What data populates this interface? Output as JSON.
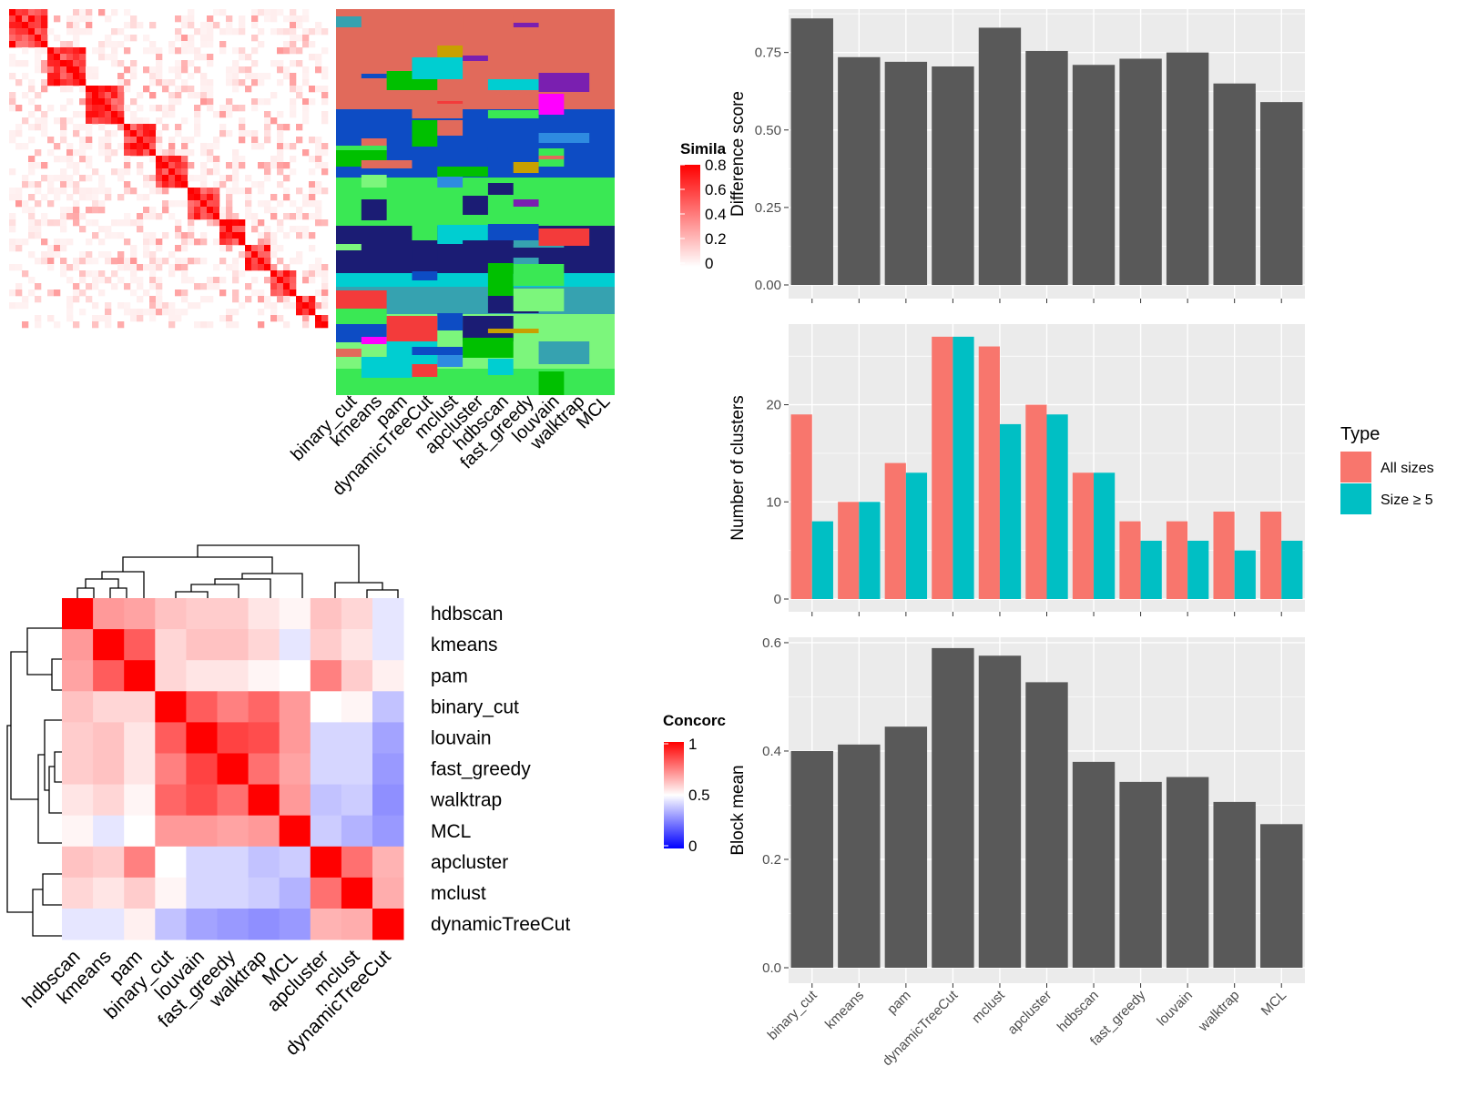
{
  "methods": [
    "binary_cut",
    "kmeans",
    "pam",
    "dynamicTreeCut",
    "mclust",
    "apcluster",
    "hdbscan",
    "fast_greedy",
    "louvain",
    "walktrap",
    "MCL"
  ],
  "top_left": {
    "legend_title": "Simila",
    "legend_ticks": [
      "0.8",
      "0.6",
      "0.4",
      "0.2",
      "0"
    ],
    "membership_labels": [
      "binary_cut",
      "kmeans",
      "pam",
      "dynamicTreeCut",
      "mclust",
      "apcluster",
      "hdbscan",
      "fast_greedy",
      "louvain",
      "walktrap",
      "MCL"
    ]
  },
  "concordance": {
    "legend_title": "Concorc",
    "legend_ticks": [
      "1",
      "0.5",
      "0"
    ],
    "order": [
      "hdbscan",
      "kmeans",
      "pam",
      "binary_cut",
      "louvain",
      "fast_greedy",
      "walktrap",
      "MCL",
      "apcluster",
      "mclust",
      "dynamicTreeCut"
    ],
    "matrix": [
      [
        1.0,
        0.7,
        0.68,
        0.62,
        0.6,
        0.6,
        0.55,
        0.52,
        0.62,
        0.58,
        0.45
      ],
      [
        0.7,
        1.0,
        0.82,
        0.58,
        0.62,
        0.62,
        0.58,
        0.45,
        0.6,
        0.55,
        0.45
      ],
      [
        0.68,
        0.82,
        1.0,
        0.58,
        0.55,
        0.55,
        0.52,
        0.5,
        0.75,
        0.6,
        0.53
      ],
      [
        0.62,
        0.58,
        0.58,
        1.0,
        0.82,
        0.75,
        0.8,
        0.7,
        0.5,
        0.52,
        0.38
      ],
      [
        0.6,
        0.62,
        0.55,
        0.82,
        1.0,
        0.87,
        0.85,
        0.7,
        0.42,
        0.42,
        0.32
      ],
      [
        0.6,
        0.62,
        0.55,
        0.75,
        0.87,
        1.0,
        0.78,
        0.68,
        0.42,
        0.42,
        0.3
      ],
      [
        0.55,
        0.58,
        0.52,
        0.8,
        0.85,
        0.78,
        1.0,
        0.7,
        0.38,
        0.4,
        0.28
      ],
      [
        0.52,
        0.45,
        0.5,
        0.7,
        0.7,
        0.68,
        0.7,
        1.0,
        0.4,
        0.35,
        0.3
      ],
      [
        0.62,
        0.6,
        0.75,
        0.5,
        0.42,
        0.42,
        0.38,
        0.4,
        1.0,
        0.78,
        0.65
      ],
      [
        0.58,
        0.55,
        0.6,
        0.52,
        0.42,
        0.42,
        0.4,
        0.35,
        0.78,
        1.0,
        0.66
      ],
      [
        0.45,
        0.45,
        0.53,
        0.38,
        0.32,
        0.3,
        0.28,
        0.3,
        0.65,
        0.66,
        1.0
      ]
    ]
  },
  "chart_data": [
    {
      "type": "bar",
      "categories": [
        "binary_cut",
        "kmeans",
        "pam",
        "dynamicTreeCut",
        "mclust",
        "apcluster",
        "hdbscan",
        "fast_greedy",
        "louvain",
        "walktrap",
        "MCL"
      ],
      "values": [
        0.86,
        0.735,
        0.72,
        0.705,
        0.83,
        0.755,
        0.71,
        0.73,
        0.75,
        0.65,
        0.59
      ],
      "ylabel": "Difference score",
      "ylim": [
        0,
        0.89
      ],
      "yticks": [
        "0.00",
        "0.25",
        "0.50",
        "0.75"
      ],
      "yticks_values": [
        0,
        0.25,
        0.5,
        0.75
      ]
    },
    {
      "type": "bar",
      "categories": [
        "binary_cut",
        "kmeans",
        "pam",
        "dynamicTreeCut",
        "mclust",
        "apcluster",
        "hdbscan",
        "fast_greedy",
        "louvain",
        "walktrap",
        "MCL"
      ],
      "series": [
        {
          "name": "All sizes",
          "color": "#F8766D",
          "values": [
            19,
            10,
            14,
            27,
            26,
            20,
            13,
            8,
            8,
            9,
            9
          ]
        },
        {
          "name": "Size ≥ 5",
          "color": "#00BFC4",
          "values": [
            8,
            10,
            13,
            27,
            18,
            19,
            13,
            6,
            6,
            5,
            6
          ]
        }
      ],
      "ylabel": "Number of clusters",
      "ylim": [
        0,
        28.3
      ],
      "yticks": [
        "0",
        "10",
        "20"
      ],
      "yticks_values": [
        0,
        10,
        20
      ],
      "legend_title": "Type",
      "legend_position": "right"
    },
    {
      "type": "bar",
      "categories": [
        "binary_cut",
        "kmeans",
        "pam",
        "dynamicTreeCut",
        "mclust",
        "apcluster",
        "hdbscan",
        "fast_greedy",
        "louvain",
        "walktrap",
        "MCL"
      ],
      "values": [
        0.4,
        0.412,
        0.445,
        0.59,
        0.576,
        0.527,
        0.38,
        0.343,
        0.352,
        0.306,
        0.265
      ],
      "ylabel": "Block mean",
      "ylim": [
        0,
        0.61
      ],
      "yticks": [
        "0.0",
        "0.2",
        "0.4",
        "0.6"
      ],
      "yticks_values": [
        0,
        0.2,
        0.4,
        0.6
      ]
    }
  ],
  "colors": {
    "bar": "#595959",
    "panel": "#EBEBEB",
    "grid": "#FFFFFF",
    "red": "#FF0000",
    "blue": "#0000FF"
  }
}
